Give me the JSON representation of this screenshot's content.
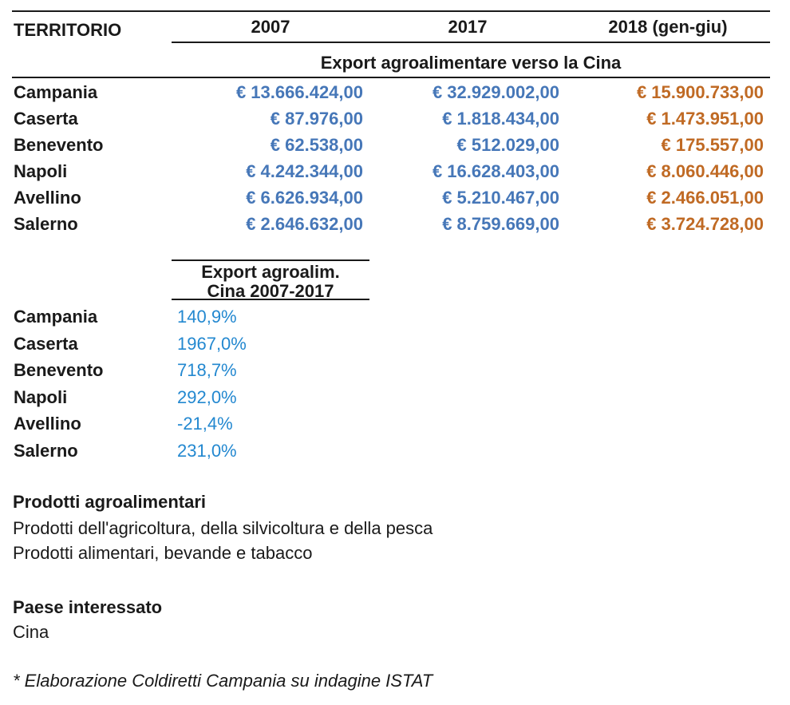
{
  "colors": {
    "value_blue_2007_2017": "#4677b8",
    "value_orange_2018": "#c06a24",
    "percent_blue": "#2388d0",
    "text_black": "#1a1a1a"
  },
  "export_table": {
    "territory_header": "TERRITORIO",
    "col_2007": "2007",
    "col_2017": "2017",
    "col_2018": "2018 (gen-giu)",
    "subheader": "Export agroalimentare verso la Cina",
    "rows": [
      {
        "territory": "Campania",
        "y2007": "€ 13.666.424,00",
        "y2017": "€ 32.929.002,00",
        "y2018": "€ 15.900.733,00"
      },
      {
        "territory": "Caserta",
        "y2007": "€ 87.976,00",
        "y2017": "€ 1.818.434,00",
        "y2018": "€ 1.473.951,00"
      },
      {
        "territory": "Benevento",
        "y2007": "€ 62.538,00",
        "y2017": "€ 512.029,00",
        "y2018": "€ 175.557,00"
      },
      {
        "territory": "Napoli",
        "y2007": "€ 4.242.344,00",
        "y2017": "€ 16.628.403,00",
        "y2018": "€ 8.060.446,00"
      },
      {
        "territory": "Avellino",
        "y2007": "€ 6.626.934,00",
        "y2017": "€ 5.210.467,00",
        "y2018": "€ 2.466.051,00"
      },
      {
        "territory": "Salerno",
        "y2007": "€ 2.646.632,00",
        "y2017": "€ 8.759.669,00",
        "y2018": "€ 3.724.728,00"
      }
    ]
  },
  "growth_table": {
    "header_line1": "Export agroalim.",
    "header_line2": "Cina 2007-2017",
    "rows": [
      {
        "territory": "Campania",
        "pct": "140,9%"
      },
      {
        "territory": "Caserta",
        "pct": "1967,0%"
      },
      {
        "territory": "Benevento",
        "pct": "718,7%"
      },
      {
        "territory": "Napoli",
        "pct": "292,0%"
      },
      {
        "territory": "Avellino",
        "pct": "-21,4%"
      },
      {
        "territory": "Salerno",
        "pct": "231,0%"
      }
    ]
  },
  "products_section": {
    "title": "Prodotti agroalimentari",
    "line1": "Prodotti dell'agricoltura, della silvicoltura e della pesca",
    "line2": "Prodotti alimentari, bevande e tabacco"
  },
  "country_section": {
    "title": "Paese interessato",
    "line1": "Cina"
  },
  "footnote": "* Elaborazione Coldiretti Campania su indagine ISTAT"
}
